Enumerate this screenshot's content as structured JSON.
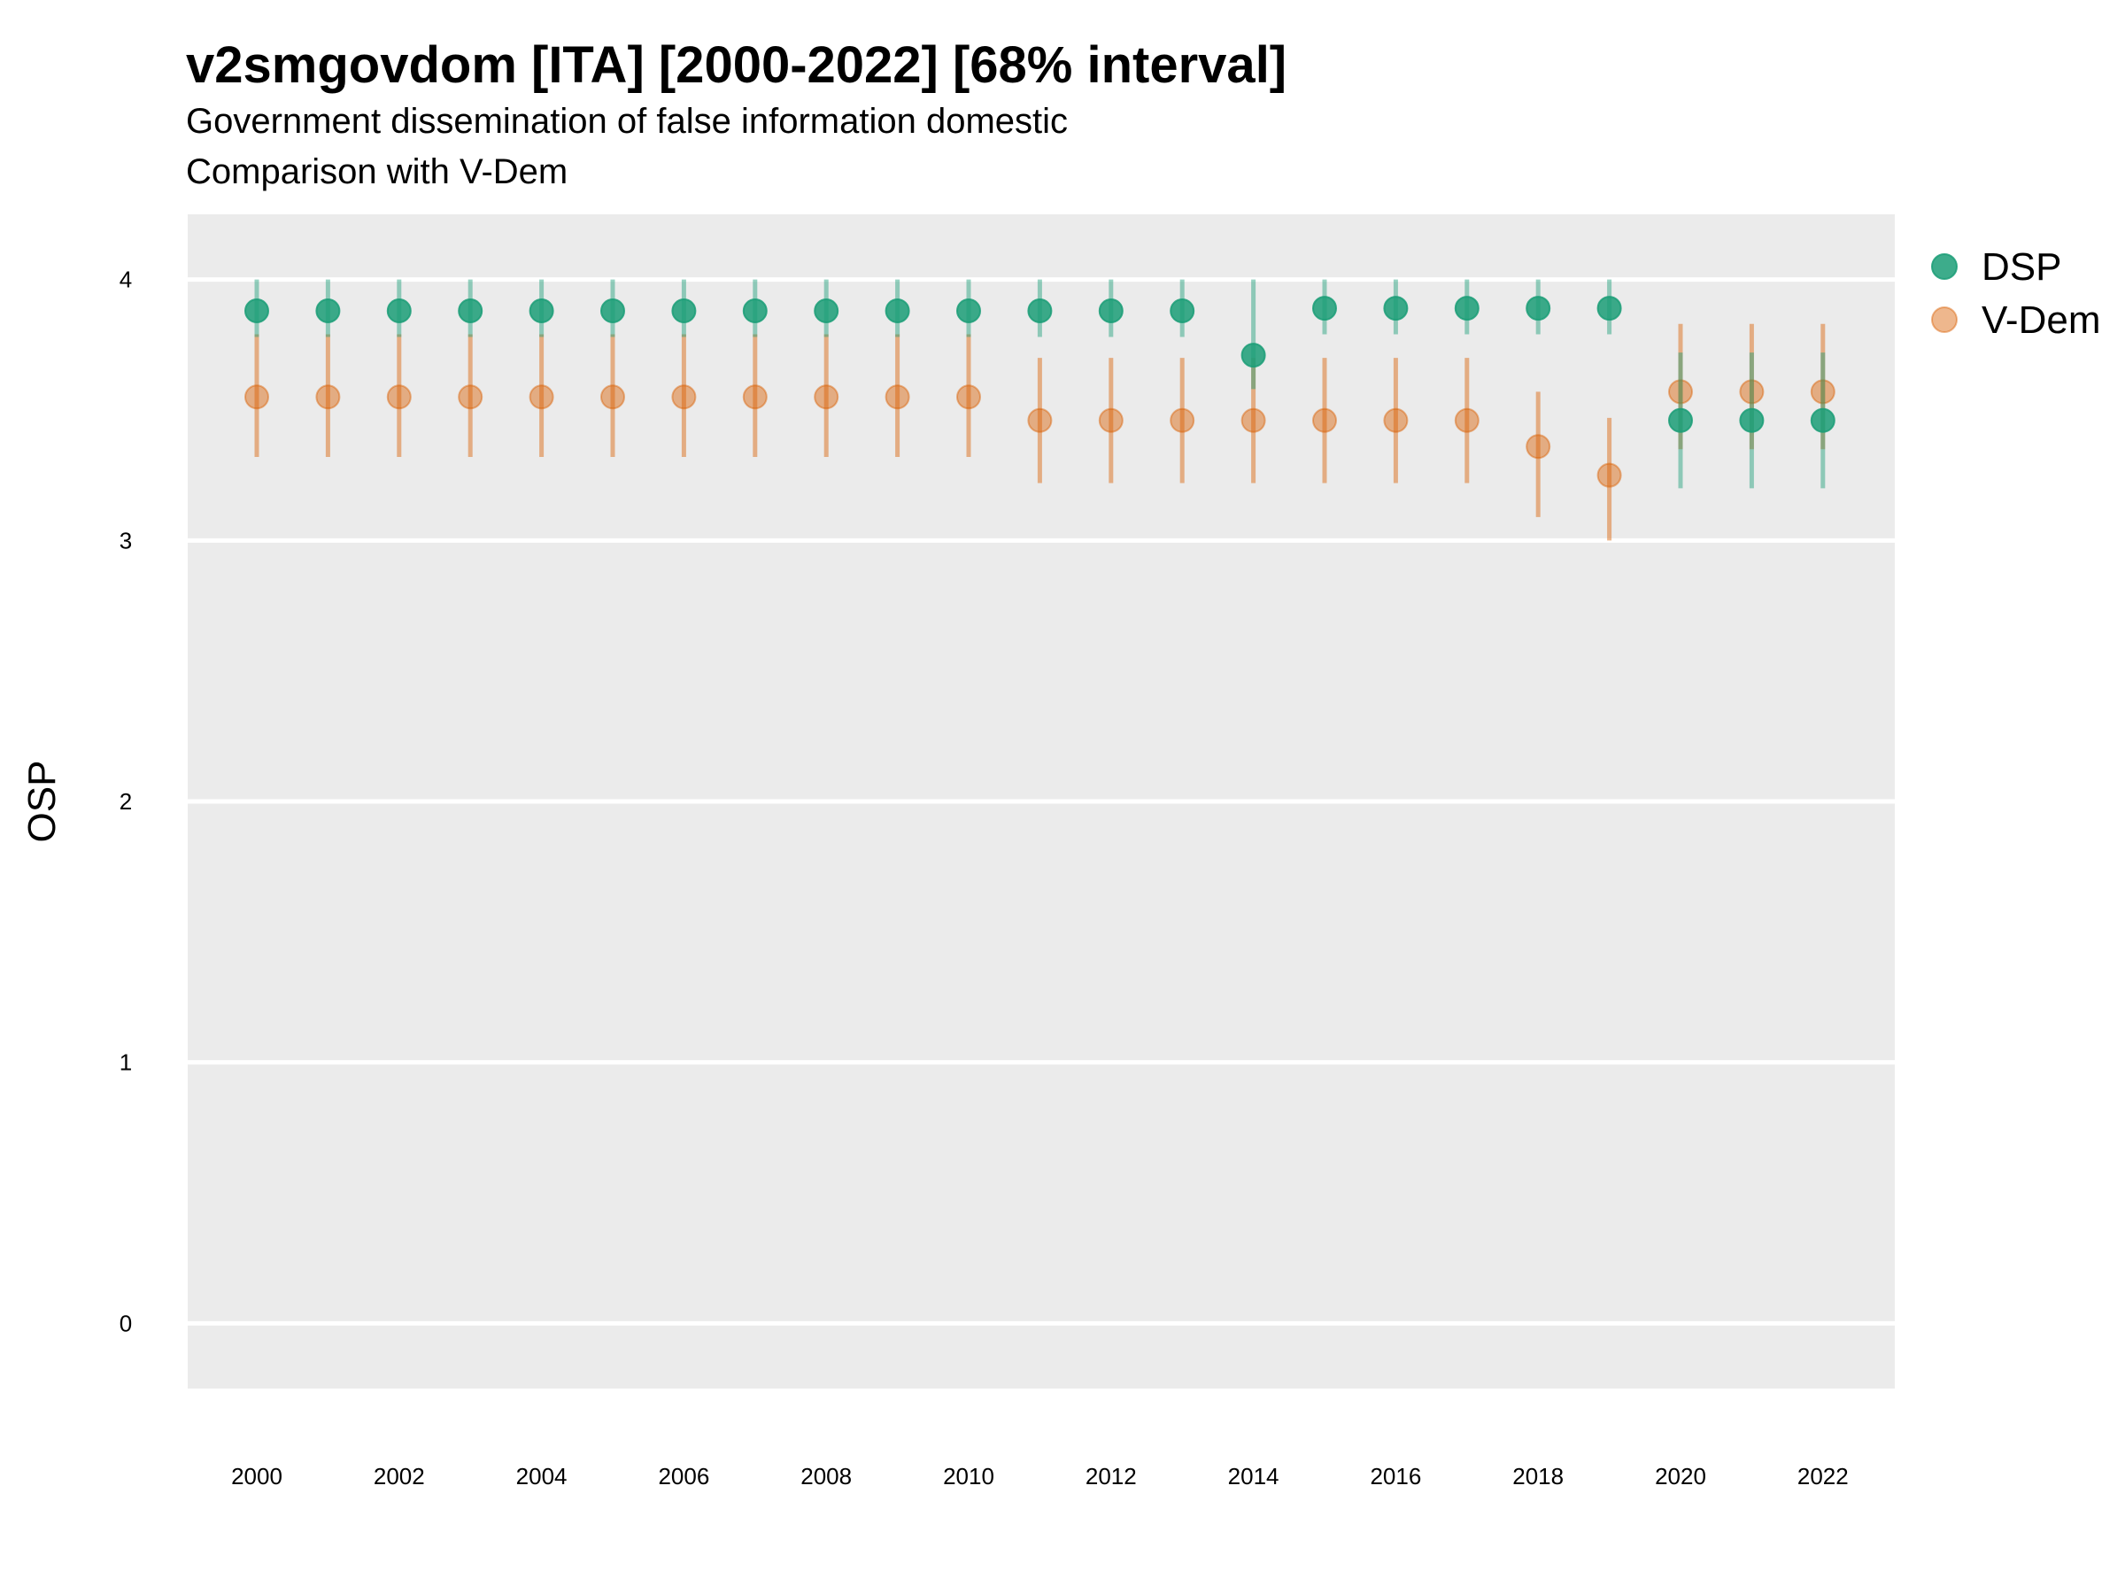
{
  "chart_data": {
    "type": "scatter",
    "title": "v2smgovdom [ITA] [2000-2022] [68% interval]",
    "subtitle": "Government dissemination of false information domestic",
    "subtitle2": "Comparison with V-Dem",
    "xlabel": "",
    "ylabel": "OSP",
    "ylim": [
      -0.25,
      4.25
    ],
    "y_ticks": [
      0,
      1,
      2,
      3,
      4
    ],
    "x_ticks": [
      2000,
      2002,
      2004,
      2006,
      2008,
      2010,
      2012,
      2014,
      2016,
      2018,
      2020,
      2022
    ],
    "x": [
      2000,
      2001,
      2002,
      2003,
      2004,
      2005,
      2006,
      2007,
      2008,
      2009,
      2010,
      2011,
      2012,
      2013,
      2014,
      2015,
      2016,
      2017,
      2018,
      2019,
      2020,
      2021,
      2022
    ],
    "grid": true,
    "legend_position": "right",
    "series": [
      {
        "name": "DSP",
        "color": "#1b9e77",
        "values": [
          3.88,
          3.88,
          3.88,
          3.88,
          3.88,
          3.88,
          3.88,
          3.88,
          3.88,
          3.88,
          3.88,
          3.88,
          3.88,
          3.88,
          3.71,
          3.89,
          3.89,
          3.89,
          3.89,
          3.89,
          3.46,
          3.46,
          3.46
        ],
        "lower": [
          3.78,
          3.78,
          3.78,
          3.78,
          3.78,
          3.78,
          3.78,
          3.78,
          3.78,
          3.78,
          3.78,
          3.78,
          3.78,
          3.78,
          3.58,
          3.79,
          3.79,
          3.79,
          3.79,
          3.79,
          3.2,
          3.2,
          3.2
        ],
        "upper": [
          4.0,
          4.0,
          4.0,
          4.0,
          4.0,
          4.0,
          4.0,
          4.0,
          4.0,
          4.0,
          4.0,
          4.0,
          4.0,
          4.0,
          4.0,
          4.0,
          4.0,
          4.0,
          4.0,
          4.0,
          3.72,
          3.72,
          3.72
        ]
      },
      {
        "name": "V-Dem",
        "color": "#d95f02",
        "values": [
          3.55,
          3.55,
          3.55,
          3.55,
          3.55,
          3.55,
          3.55,
          3.55,
          3.55,
          3.55,
          3.55,
          3.46,
          3.46,
          3.46,
          3.46,
          3.46,
          3.46,
          3.46,
          3.36,
          3.25,
          3.57,
          3.57,
          3.57
        ],
        "lower": [
          3.32,
          3.32,
          3.32,
          3.32,
          3.32,
          3.32,
          3.32,
          3.32,
          3.32,
          3.32,
          3.32,
          3.22,
          3.22,
          3.22,
          3.22,
          3.22,
          3.22,
          3.22,
          3.09,
          3.0,
          3.35,
          3.35,
          3.35
        ],
        "upper": [
          3.79,
          3.79,
          3.79,
          3.79,
          3.79,
          3.79,
          3.79,
          3.79,
          3.79,
          3.79,
          3.79,
          3.7,
          3.7,
          3.7,
          3.7,
          3.7,
          3.7,
          3.7,
          3.57,
          3.47,
          3.83,
          3.83,
          3.83
        ]
      }
    ]
  }
}
